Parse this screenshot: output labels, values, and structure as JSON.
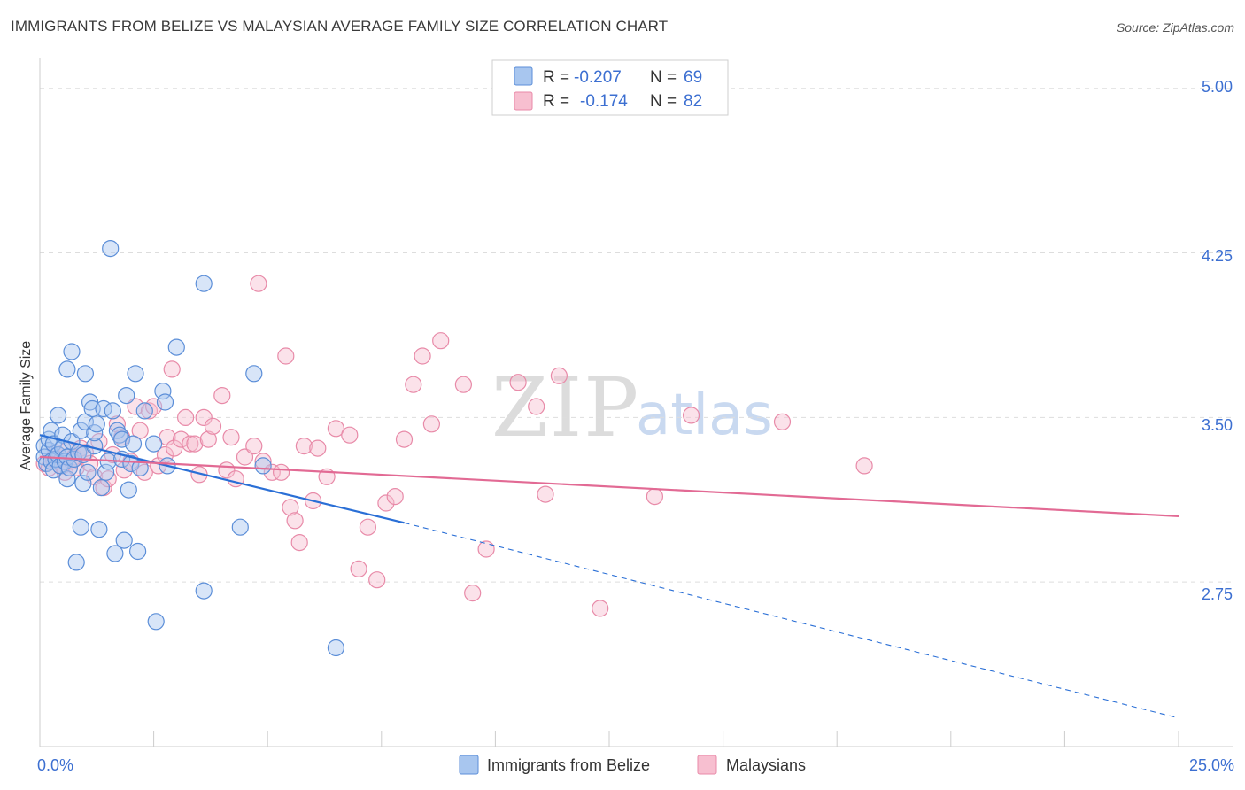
{
  "title": "IMMIGRANTS FROM BELIZE VS MALAYSIAN AVERAGE FAMILY SIZE CORRELATION CHART",
  "source": "Source: ZipAtlas.com",
  "watermark": {
    "part1": "ZIP",
    "part2": "atlas"
  },
  "colors": {
    "blue_fill": "#a8c6ef",
    "blue_stroke": "#5b8ed8",
    "blue_line": "#2a6fd6",
    "pink_fill": "#f7bfd0",
    "pink_stroke": "#e88aa8",
    "pink_line": "#e26a94",
    "grid": "#dddddd",
    "tick_text": "#3c6fd1"
  },
  "legend": {
    "row1": {
      "r_label": "R =",
      "r_value": "-0.207",
      "n_label": "N =",
      "n_value": "69"
    },
    "row2": {
      "r_label": "R =",
      "r_value": "-0.174",
      "n_label": "N =",
      "n_value": "82"
    }
  },
  "bottom_legend": {
    "series1": "Immigrants from Belize",
    "series2": "Malaysians"
  },
  "chart_data": {
    "type": "scatter",
    "title": "IMMIGRANTS FROM BELIZE VS MALAYSIAN AVERAGE FAMILY SIZE CORRELATION CHART",
    "xlabel": "",
    "ylabel": "Average Family Size",
    "xlim": [
      0,
      25
    ],
    "ylim": [
      2.0,
      5.12
    ],
    "x_tick_labels": [
      "0.0%",
      "25.0%"
    ],
    "y_ticks": [
      2.75,
      3.5,
      4.25,
      5.0
    ],
    "y_tick_labels": [
      "2.75",
      "3.50",
      "4.25",
      "5.00"
    ],
    "grid": true,
    "series": [
      {
        "name": "Immigrants from Belize",
        "color": "blue",
        "r": -0.207,
        "n": 69,
        "trend": {
          "x0": 0.0,
          "y0": 3.42,
          "x1": 8.0,
          "y1": 3.02,
          "x_ext": 25.0,
          "y_ext": 2.13
        },
        "points": [
          [
            0.1,
            3.37
          ],
          [
            0.1,
            3.32
          ],
          [
            0.15,
            3.29
          ],
          [
            0.2,
            3.35
          ],
          [
            0.2,
            3.4
          ],
          [
            0.25,
            3.44
          ],
          [
            0.25,
            3.3
          ],
          [
            0.3,
            3.26
          ],
          [
            0.3,
            3.38
          ],
          [
            0.35,
            3.31
          ],
          [
            0.4,
            3.51
          ],
          [
            0.4,
            3.33
          ],
          [
            0.45,
            3.28
          ],
          [
            0.5,
            3.42
          ],
          [
            0.5,
            3.36
          ],
          [
            0.55,
            3.3
          ],
          [
            0.6,
            3.22
          ],
          [
            0.6,
            3.72
          ],
          [
            0.6,
            3.32
          ],
          [
            0.65,
            3.27
          ],
          [
            0.7,
            3.39
          ],
          [
            0.7,
            3.8
          ],
          [
            0.75,
            3.31
          ],
          [
            0.8,
            2.84
          ],
          [
            0.85,
            3.34
          ],
          [
            0.9,
            3.0
          ],
          [
            0.9,
            3.44
          ],
          [
            0.95,
            3.2
          ],
          [
            0.95,
            3.33
          ],
          [
            1.0,
            3.7
          ],
          [
            1.0,
            3.48
          ],
          [
            1.05,
            3.25
          ],
          [
            1.1,
            3.57
          ],
          [
            1.15,
            3.54
          ],
          [
            1.2,
            3.37
          ],
          [
            1.2,
            3.43
          ],
          [
            1.25,
            3.47
          ],
          [
            1.3,
            2.99
          ],
          [
            1.35,
            3.18
          ],
          [
            1.4,
            3.54
          ],
          [
            1.45,
            3.25
          ],
          [
            1.5,
            3.3
          ],
          [
            1.55,
            4.27
          ],
          [
            1.6,
            3.53
          ],
          [
            1.65,
            2.88
          ],
          [
            1.7,
            3.44
          ],
          [
            1.75,
            3.42
          ],
          [
            1.8,
            3.31
          ],
          [
            1.8,
            3.4
          ],
          [
            1.85,
            2.94
          ],
          [
            1.9,
            3.6
          ],
          [
            1.95,
            3.17
          ],
          [
            2.0,
            3.29
          ],
          [
            2.05,
            3.38
          ],
          [
            2.1,
            3.7
          ],
          [
            2.15,
            2.89
          ],
          [
            2.2,
            3.27
          ],
          [
            2.3,
            3.53
          ],
          [
            2.5,
            3.38
          ],
          [
            2.55,
            2.57
          ],
          [
            2.7,
            3.62
          ],
          [
            2.75,
            3.57
          ],
          [
            2.8,
            3.28
          ],
          [
            3.0,
            3.82
          ],
          [
            3.6,
            2.71
          ],
          [
            3.6,
            4.11
          ],
          [
            4.4,
            3.0
          ],
          [
            4.7,
            3.7
          ],
          [
            4.9,
            3.28
          ],
          [
            6.5,
            2.45
          ]
        ]
      },
      {
        "name": "Malaysians",
        "color": "pink",
        "r": -0.174,
        "n": 82,
        "trend": {
          "x0": 0.0,
          "y0": 3.32,
          "x1": 25.0,
          "y1": 3.05
        },
        "points": [
          [
            0.1,
            3.29
          ],
          [
            0.2,
            3.27
          ],
          [
            0.3,
            3.31
          ],
          [
            0.35,
            3.34
          ],
          [
            0.5,
            3.28
          ],
          [
            0.55,
            3.25
          ],
          [
            0.6,
            3.35
          ],
          [
            0.7,
            3.3
          ],
          [
            0.75,
            3.32
          ],
          [
            0.8,
            3.27
          ],
          [
            0.9,
            3.36
          ],
          [
            1.0,
            3.34
          ],
          [
            1.1,
            3.29
          ],
          [
            1.2,
            3.23
          ],
          [
            1.3,
            3.39
          ],
          [
            1.4,
            3.18
          ],
          [
            1.5,
            3.22
          ],
          [
            1.6,
            3.33
          ],
          [
            1.7,
            3.47
          ],
          [
            1.8,
            3.41
          ],
          [
            1.85,
            3.26
          ],
          [
            2.0,
            3.3
          ],
          [
            2.1,
            3.55
          ],
          [
            2.2,
            3.44
          ],
          [
            2.3,
            3.25
          ],
          [
            2.4,
            3.53
          ],
          [
            2.5,
            3.55
          ],
          [
            2.6,
            3.28
          ],
          [
            2.75,
            3.33
          ],
          [
            2.8,
            3.41
          ],
          [
            2.9,
            3.72
          ],
          [
            2.95,
            3.36
          ],
          [
            3.1,
            3.4
          ],
          [
            3.2,
            3.5
          ],
          [
            3.3,
            3.38
          ],
          [
            3.4,
            3.38
          ],
          [
            3.5,
            3.24
          ],
          [
            3.6,
            3.5
          ],
          [
            3.7,
            3.4
          ],
          [
            3.8,
            3.46
          ],
          [
            4.0,
            3.6
          ],
          [
            4.1,
            3.26
          ],
          [
            4.2,
            3.41
          ],
          [
            4.3,
            3.22
          ],
          [
            4.5,
            3.32
          ],
          [
            4.7,
            3.37
          ],
          [
            4.8,
            4.11
          ],
          [
            4.9,
            3.3
          ],
          [
            5.1,
            3.25
          ],
          [
            5.3,
            3.25
          ],
          [
            5.4,
            3.78
          ],
          [
            5.5,
            3.09
          ],
          [
            5.6,
            3.03
          ],
          [
            5.7,
            2.93
          ],
          [
            5.8,
            3.37
          ],
          [
            6.0,
            3.12
          ],
          [
            6.1,
            3.36
          ],
          [
            6.3,
            3.23
          ],
          [
            6.5,
            3.45
          ],
          [
            6.8,
            3.42
          ],
          [
            7.0,
            2.81
          ],
          [
            7.2,
            3.0
          ],
          [
            7.4,
            2.76
          ],
          [
            7.6,
            3.11
          ],
          [
            7.8,
            3.14
          ],
          [
            8.0,
            3.4
          ],
          [
            8.2,
            3.65
          ],
          [
            8.4,
            3.78
          ],
          [
            8.6,
            3.47
          ],
          [
            8.8,
            3.85
          ],
          [
            9.3,
            3.65
          ],
          [
            9.5,
            2.7
          ],
          [
            9.8,
            2.9
          ],
          [
            10.5,
            3.66
          ],
          [
            10.9,
            3.55
          ],
          [
            11.1,
            3.15
          ],
          [
            11.4,
            3.69
          ],
          [
            12.3,
            2.63
          ],
          [
            13.5,
            3.14
          ],
          [
            14.3,
            3.51
          ],
          [
            16.3,
            3.48
          ],
          [
            18.1,
            3.28
          ]
        ]
      }
    ]
  }
}
